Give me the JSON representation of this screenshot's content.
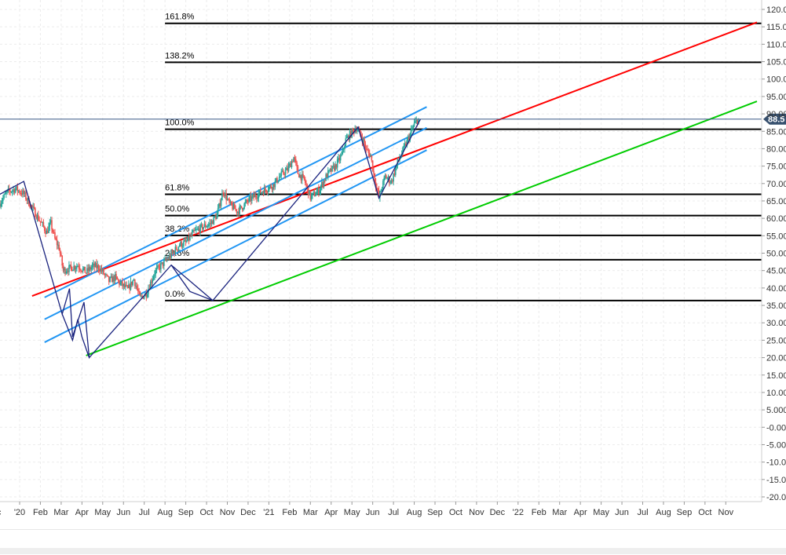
{
  "chart_data": {
    "type": "candlestick",
    "y_axis": {
      "range": [
        -20,
        120
      ],
      "ticks": [
        "-20.0",
        "-15.0",
        "-10.0",
        "-5.00",
        "-0.00",
        "5.000",
        "10.00",
        "15.00",
        "20.00",
        "25.00",
        "30.00",
        "35.00",
        "40.00",
        "45.00",
        "50.00",
        "55.00",
        "60.00",
        "65.00",
        "70.00",
        "75.00",
        "80.00",
        "85.00",
        "90.00",
        "95.00",
        "100.0",
        "105.0",
        "110.0",
        "115.0",
        "120.0"
      ],
      "tick_values": [
        -20,
        -15,
        -10,
        -5,
        0,
        5,
        10,
        15,
        20,
        25,
        30,
        35,
        40,
        45,
        50,
        55,
        60,
        65,
        70,
        75,
        80,
        85,
        90,
        95,
        100,
        105,
        110,
        115,
        120
      ]
    },
    "x_axis": {
      "ticks": [
        "c",
        "'20",
        "Feb",
        "Mar",
        "Apr",
        "May",
        "Jun",
        "Jul",
        "Aug",
        "Sep",
        "Oct",
        "Nov",
        "Dec",
        "'21",
        "Feb",
        "Mar",
        "Apr",
        "May",
        "Jun",
        "Jul",
        "Aug",
        "Sep",
        "Oct",
        "Nov",
        "Dec",
        "'22",
        "Feb",
        "Mar",
        "Apr",
        "May",
        "Jun",
        "Jul",
        "Aug",
        "Sep",
        "Oct",
        "Nov"
      ],
      "tick_months": [
        -1,
        0,
        1,
        2,
        3,
        4,
        5,
        6,
        7,
        8,
        9,
        10,
        11,
        12,
        13,
        14,
        15,
        16,
        17,
        18,
        19,
        20,
        21,
        22,
        23,
        24,
        25,
        26,
        27,
        28,
        29,
        30,
        31,
        32,
        33,
        34
      ]
    },
    "current_price": {
      "label": "88.5",
      "value": 88.5
    },
    "fibonacci_levels": [
      {
        "label": "161.8%",
        "value": 116.0
      },
      {
        "label": "138.2%",
        "value": 104.8
      },
      {
        "label": "100.0%",
        "value": 85.6
      },
      {
        "label": "61.8%",
        "value": 66.9
      },
      {
        "label": "50.0%",
        "value": 60.8
      },
      {
        "label": "38.2%",
        "value": 55.1
      },
      {
        "label": "23.6%",
        "value": 48.1
      },
      {
        "label": "0.0%",
        "value": 36.4
      }
    ],
    "price_path": [
      [
        -1.0,
        64.0
      ],
      [
        -0.6,
        67.5
      ],
      [
        -0.2,
        68.5
      ],
      [
        0.2,
        67.0
      ],
      [
        0.6,
        63.0
      ],
      [
        1.0,
        59.0
      ],
      [
        1.3,
        56.0
      ],
      [
        1.5,
        58.5
      ],
      [
        1.7,
        54.0
      ],
      [
        1.9,
        51.5
      ],
      [
        2.1,
        45.0
      ],
      [
        2.8,
        46.5
      ],
      [
        3.0,
        45.5
      ],
      [
        3.2,
        44.5
      ],
      [
        3.5,
        46.2
      ],
      [
        3.8,
        46.0
      ],
      [
        4.0,
        44.5
      ],
      [
        4.3,
        42.0
      ],
      [
        4.6,
        43.0
      ],
      [
        4.8,
        41.5
      ],
      [
        5.2,
        39.5
      ],
      [
        5.5,
        42.5
      ],
      [
        5.8,
        37.0
      ],
      [
        6.1,
        38.5
      ],
      [
        6.5,
        44.5
      ],
      [
        6.9,
        47.0
      ],
      [
        7.3,
        49.5
      ],
      [
        7.7,
        52.5
      ],
      [
        8.0,
        53.0
      ],
      [
        8.4,
        56.0
      ],
      [
        8.8,
        57.5
      ],
      [
        9.2,
        58.5
      ],
      [
        9.5,
        61.0
      ],
      [
        9.8,
        68.0
      ],
      [
        10.1,
        64.0
      ],
      [
        10.5,
        62.0
      ],
      [
        11.0,
        65.0
      ],
      [
        11.6,
        67.5
      ],
      [
        12.2,
        69.5
      ],
      [
        12.6,
        72.5
      ],
      [
        12.9,
        74.0
      ],
      [
        13.2,
        77.5
      ],
      [
        13.4,
        73.0
      ],
      [
        13.7,
        71.0
      ],
      [
        14.0,
        66.0
      ],
      [
        14.4,
        68.0
      ],
      [
        14.8,
        72.5
      ],
      [
        15.2,
        75.0
      ],
      [
        15.5,
        78.0
      ],
      [
        15.7,
        82.5
      ],
      [
        15.9,
        84.0
      ],
      [
        16.2,
        86.0
      ],
      [
        16.5,
        83.0
      ],
      [
        16.7,
        79.5
      ],
      [
        16.9,
        78.0
      ],
      [
        17.1,
        71.0
      ],
      [
        17.3,
        66.0
      ],
      [
        17.6,
        72.0
      ],
      [
        17.9,
        70.5
      ],
      [
        18.2,
        76.0
      ],
      [
        18.5,
        80.0
      ],
      [
        18.8,
        84.0
      ],
      [
        19.0,
        87.0
      ],
      [
        19.2,
        88.5
      ]
    ],
    "swing_lines": [
      [
        [
          -1.3,
          65.8
        ],
        [
          0.2,
          70.6
        ],
        [
          2.05,
          32.5
        ],
        [
          2.4,
          39.8
        ],
        [
          2.55,
          26.0
        ],
        [
          3.1,
          35.9
        ],
        [
          3.35,
          20.0
        ],
        [
          7.3,
          46.6
        ],
        [
          9.3,
          36.4
        ],
        [
          16.3,
          86.2
        ],
        [
          17.3,
          65.8
        ],
        [
          19.3,
          88.5
        ]
      ],
      [
        [
          2.05,
          32.5
        ],
        [
          2.55,
          25.0
        ],
        [
          2.8,
          31.0
        ],
        [
          3.0,
          26.0
        ],
        [
          3.35,
          20.0
        ]
      ],
      [
        [
          7.3,
          46.6
        ],
        [
          8.2,
          39.0
        ],
        [
          9.3,
          36.4
        ]
      ]
    ],
    "trend_lines": [
      {
        "color": "#ff0000",
        "from": [
          0.6,
          37.7
        ],
        "to": [
          35.5,
          116.3
        ]
      },
      {
        "color": "#00cc00",
        "from": [
          3.2,
          20.6
        ],
        "to": [
          35.5,
          93.6
        ]
      },
      {
        "color": "#2196f3",
        "from": [
          1.2,
          37.3
        ],
        "to": [
          19.6,
          92.0
        ]
      },
      {
        "color": "#2196f3",
        "from": [
          1.2,
          31.0
        ],
        "to": [
          19.6,
          86.0
        ]
      },
      {
        "color": "#2196f3",
        "from": [
          1.2,
          24.4
        ],
        "to": [
          19.6,
          79.6
        ]
      }
    ],
    "fib_line_start_month": 7.0
  }
}
